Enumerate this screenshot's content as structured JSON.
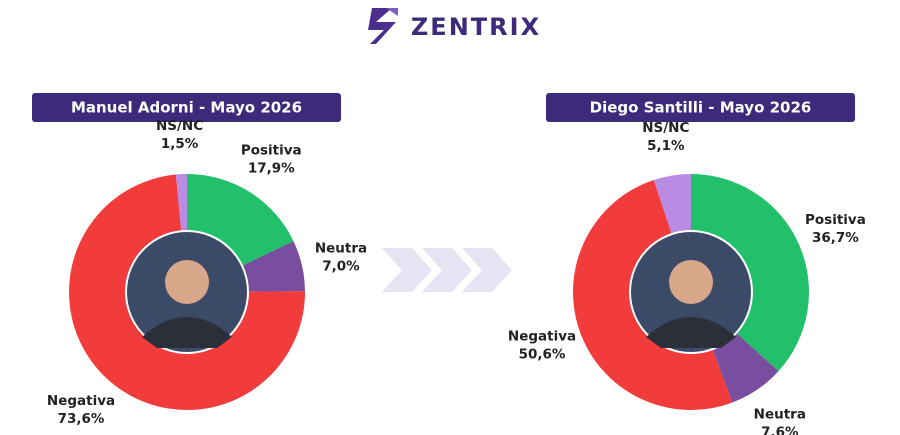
{
  "brand": "ZENTRIX",
  "chart_data": [
    {
      "type": "donut",
      "title": "Manuel Adorni - Mayo 2026",
      "categories": [
        "Positiva",
        "Neutra",
        "Negativa",
        "NS/NC"
      ],
      "values": [
        17.9,
        7.0,
        73.6,
        1.5
      ],
      "value_labels": [
        "17,9%",
        "7,0%",
        "73,6%",
        "1,5%"
      ],
      "colors": [
        "#22c06b",
        "#7a4e9e",
        "#f23b3b",
        "#b98be2"
      ]
    },
    {
      "type": "donut",
      "title": "Diego Santilli - Mayo 2026",
      "categories": [
        "Positiva",
        "Neutra",
        "Negativa",
        "NS/NC"
      ],
      "values": [
        36.7,
        7.6,
        50.6,
        5.1
      ],
      "value_labels": [
        "36,7%",
        "7,6%",
        "50,6%",
        "5,1%"
      ],
      "colors": [
        "#22c06b",
        "#7a4e9e",
        "#f23b3b",
        "#b98be2"
      ]
    }
  ]
}
